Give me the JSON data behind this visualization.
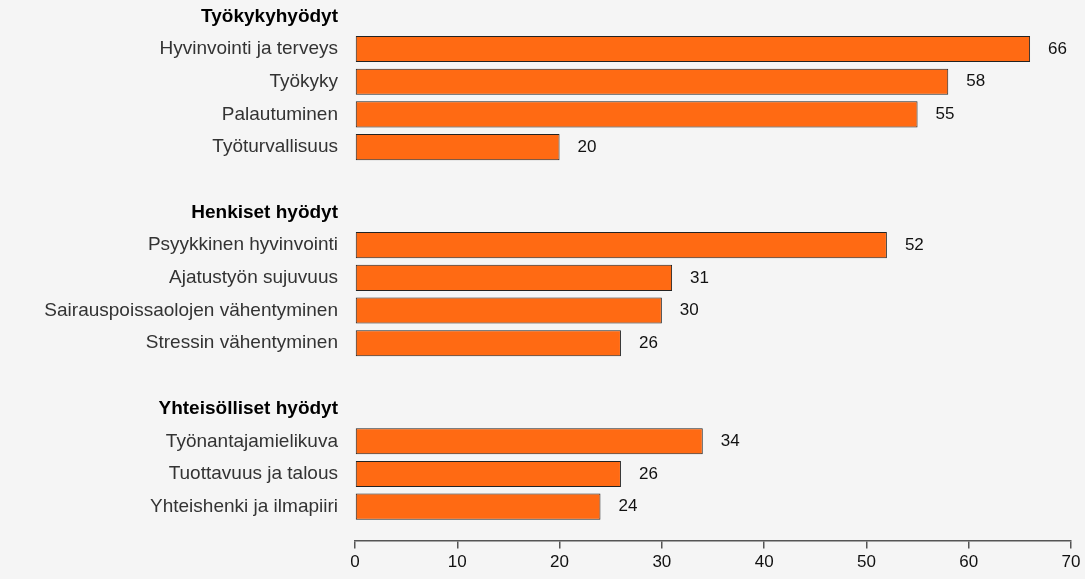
{
  "chart_data": {
    "type": "bar",
    "orientation": "horizontal",
    "categories": [
      "Työkykyhyödyt",
      "Hyvinvointi ja terveys",
      "Työkyky",
      "Palautuminen",
      "Työturvallisuus",
      null,
      "Henkiset hyödyt",
      "Psyykkinen hyvinvointi",
      "Ajatustyön sujuvuus",
      "Sairauspoissaolojen vähentyminen",
      "Stressin vähentyminen",
      null,
      "Yhteisölliset hyödyt",
      "Työnantajamielikuva",
      "Tuottavuus ja talous",
      "Yhteishenki ja ilmapiiri"
    ],
    "values": [
      null,
      66,
      58,
      55,
      20,
      null,
      null,
      52,
      31,
      30,
      26,
      null,
      null,
      34,
      26,
      24
    ],
    "color": "#ff6a13",
    "xlim": [
      0,
      70
    ],
    "xticks": [
      0,
      10,
      20,
      30,
      40,
      50,
      60,
      70
    ],
    "data_labels": true,
    "grid": false,
    "legend": false
  }
}
